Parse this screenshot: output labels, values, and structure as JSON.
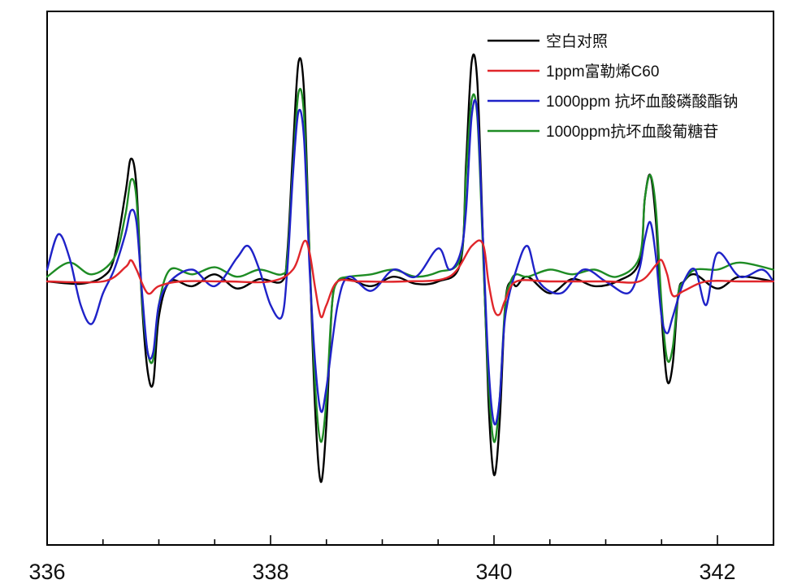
{
  "chart_data": {
    "type": "line",
    "title": "",
    "xlabel": "",
    "ylabel": "",
    "xlim": [
      336,
      342.5
    ],
    "ylim": [
      -1.0,
      1.0
    ],
    "x_ticks": [
      336,
      338,
      340,
      342
    ],
    "x_tick_labels": [
      "336",
      "338",
      "340",
      "342"
    ],
    "minor_x_ticks": [
      336.5,
      337,
      337.5,
      338.5,
      339,
      339.5,
      340.5,
      341,
      341.5,
      342.5
    ],
    "y_ticks_shown": false,
    "grid": false,
    "legend_position": "top-right",
    "series": [
      {
        "name": "空白对照",
        "color": "#000000",
        "x": [
          336.0,
          336.3,
          336.5,
          336.6,
          336.7,
          336.75,
          336.8,
          336.85,
          336.9,
          336.95,
          337.0,
          337.1,
          337.3,
          337.5,
          337.7,
          337.9,
          338.1,
          338.15,
          338.2,
          338.25,
          338.3,
          338.35,
          338.4,
          338.45,
          338.5,
          338.55,
          338.6,
          338.7,
          338.9,
          339.1,
          339.3,
          339.5,
          339.7,
          339.75,
          339.8,
          339.85,
          339.9,
          339.95,
          340.0,
          340.05,
          340.1,
          340.15,
          340.2,
          340.3,
          340.5,
          340.7,
          340.9,
          341.1,
          341.3,
          341.35,
          341.4,
          341.45,
          341.5,
          341.55,
          341.6,
          341.65,
          341.7,
          341.8,
          342.0,
          342.2,
          342.5
        ],
        "y": [
          0.0,
          -0.01,
          0.02,
          0.1,
          0.37,
          0.52,
          0.4,
          -0.1,
          -0.38,
          -0.43,
          -0.15,
          0.0,
          -0.02,
          0.03,
          -0.03,
          0.01,
          0.0,
          0.12,
          0.55,
          0.93,
          0.8,
          0.1,
          -0.55,
          -0.85,
          -0.6,
          -0.1,
          0.0,
          0.01,
          -0.02,
          0.02,
          -0.01,
          0.0,
          0.08,
          0.5,
          0.93,
          0.85,
          0.2,
          -0.5,
          -0.82,
          -0.6,
          -0.1,
          0.0,
          -0.02,
          0.02,
          -0.05,
          0.01,
          -0.02,
          0.0,
          0.08,
          0.35,
          0.45,
          0.25,
          -0.15,
          -0.42,
          -0.35,
          -0.05,
          0.0,
          0.03,
          -0.03,
          0.02,
          0.0
        ]
      },
      {
        "name": "1ppm富勒烯C60",
        "color": "#e0262b",
        "x": [
          336.0,
          336.5,
          336.7,
          336.75,
          336.8,
          336.9,
          337.0,
          337.2,
          337.6,
          338.0,
          338.2,
          338.3,
          338.35,
          338.4,
          338.45,
          338.5,
          338.6,
          338.8,
          339.2,
          339.6,
          339.8,
          339.9,
          339.95,
          340.0,
          340.05,
          340.1,
          340.2,
          340.5,
          341.0,
          341.3,
          341.45,
          341.5,
          341.55,
          341.6,
          341.7,
          341.9,
          342.2,
          342.5
        ],
        "y": [
          0.0,
          0.0,
          0.06,
          0.09,
          0.05,
          -0.05,
          -0.02,
          0.0,
          0.0,
          0.0,
          0.05,
          0.17,
          0.12,
          -0.03,
          -0.15,
          -0.1,
          0.0,
          0.0,
          0.0,
          0.02,
          0.15,
          0.16,
          0.0,
          -0.12,
          -0.14,
          -0.08,
          0.0,
          0.0,
          0.0,
          0.0,
          0.07,
          0.09,
          0.03,
          -0.06,
          -0.04,
          0.0,
          0.0,
          0.0
        ]
      },
      {
        "name": "1000ppm 抗坏血酸磷酸酯钠",
        "color": "#1f22c8",
        "x": [
          336.0,
          336.1,
          336.2,
          336.3,
          336.4,
          336.5,
          336.6,
          336.7,
          336.75,
          336.8,
          336.85,
          336.9,
          336.95,
          337.0,
          337.1,
          337.3,
          337.5,
          337.7,
          337.8,
          337.9,
          338.0,
          338.1,
          338.15,
          338.2,
          338.25,
          338.3,
          338.35,
          338.4,
          338.45,
          338.5,
          338.6,
          338.7,
          338.9,
          339.1,
          339.3,
          339.5,
          339.6,
          339.7,
          339.75,
          339.8,
          339.85,
          339.9,
          339.95,
          340.0,
          340.05,
          340.1,
          340.2,
          340.3,
          340.4,
          340.6,
          340.8,
          341.0,
          341.2,
          341.3,
          341.35,
          341.4,
          341.45,
          341.5,
          341.55,
          341.6,
          341.7,
          341.8,
          341.9,
          342.0,
          342.2,
          342.4,
          342.5
        ],
        "y": [
          0.05,
          0.2,
          0.1,
          -0.1,
          -0.18,
          -0.05,
          0.05,
          0.2,
          0.3,
          0.25,
          -0.05,
          -0.3,
          -0.3,
          -0.1,
          0.0,
          0.05,
          -0.02,
          0.1,
          0.15,
          0.05,
          -0.1,
          -0.15,
          0.05,
          0.45,
          0.72,
          0.6,
          0.05,
          -0.35,
          -0.55,
          -0.45,
          -0.1,
          0.02,
          -0.04,
          0.05,
          0.02,
          0.14,
          0.05,
          0.12,
          0.3,
          0.7,
          0.72,
          0.2,
          -0.35,
          -0.6,
          -0.5,
          -0.15,
          0.05,
          0.15,
          0.0,
          -0.05,
          0.05,
          0.0,
          -0.05,
          0.05,
          0.18,
          0.25,
          0.1,
          -0.15,
          -0.22,
          -0.15,
          0.0,
          0.05,
          -0.1,
          0.12,
          0.02,
          0.05,
          0.0
        ]
      },
      {
        "name": "1000ppm抗坏血酸葡糖苷",
        "color": "#1e8c24",
        "x": [
          336.0,
          336.2,
          336.4,
          336.6,
          336.7,
          336.75,
          336.8,
          336.85,
          336.9,
          336.95,
          337.0,
          337.1,
          337.3,
          337.5,
          337.7,
          337.9,
          338.1,
          338.15,
          338.2,
          338.25,
          338.3,
          338.35,
          338.4,
          338.45,
          338.5,
          338.55,
          338.6,
          338.7,
          338.9,
          339.1,
          339.3,
          339.5,
          339.7,
          339.75,
          339.8,
          339.85,
          339.9,
          339.95,
          340.0,
          340.05,
          340.1,
          340.15,
          340.2,
          340.3,
          340.5,
          340.7,
          340.9,
          341.1,
          341.3,
          341.35,
          341.4,
          341.45,
          341.5,
          341.55,
          341.6,
          341.65,
          341.7,
          341.8,
          342.0,
          342.2,
          342.5
        ],
        "y": [
          0.02,
          0.08,
          0.03,
          0.1,
          0.28,
          0.43,
          0.35,
          -0.08,
          -0.3,
          -0.33,
          -0.1,
          0.05,
          0.03,
          0.06,
          0.02,
          0.05,
          0.03,
          0.1,
          0.48,
          0.8,
          0.7,
          0.1,
          -0.45,
          -0.68,
          -0.5,
          -0.1,
          0.0,
          0.02,
          0.03,
          0.05,
          0.02,
          0.04,
          0.1,
          0.45,
          0.77,
          0.7,
          0.15,
          -0.42,
          -0.68,
          -0.5,
          -0.1,
          0.0,
          0.03,
          0.02,
          0.05,
          0.03,
          0.05,
          0.02,
          0.1,
          0.35,
          0.45,
          0.3,
          -0.1,
          -0.33,
          -0.28,
          -0.05,
          0.0,
          0.05,
          0.05,
          0.08,
          0.05
        ]
      }
    ]
  }
}
